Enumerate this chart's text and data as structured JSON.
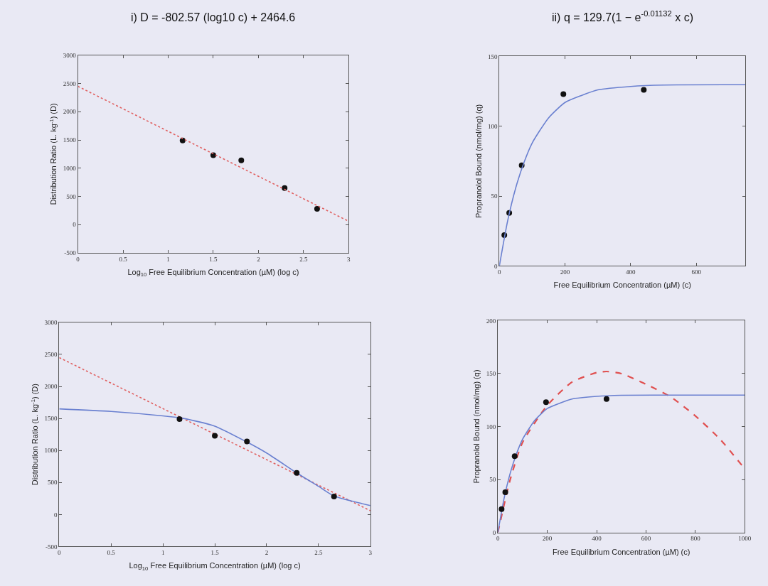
{
  "chart_data": [
    {
      "type": "scatter",
      "title": "i) D = -802.57 (log10 c) + 2464.6",
      "xlabel": "Log$_{10}$ Free Equilibrium Concentration (µM) (log c)",
      "ylabel": "Distribution Ratio (L. kg$^{-1}$) (D)",
      "xlim": [
        0,
        3
      ],
      "xticks": [
        0,
        0.5,
        1,
        1.5,
        2,
        2.5,
        3
      ],
      "ylim": [
        -500,
        3000
      ],
      "yticks": [
        -500,
        0,
        500,
        1000,
        1500,
        2000,
        2500,
        3000
      ],
      "grid": false,
      "series": [
        {
          "color": "#111111",
          "marker": "circle",
          "x": [
            1.16,
            1.5,
            1.81,
            2.29,
            2.65
          ],
          "values": [
            1490,
            1230,
            1140,
            650,
            280
          ]
        },
        {
          "type": "line",
          "color": "#e06060",
          "line_style": "dotted",
          "x": [
            0,
            3
          ],
          "values": [
            2450,
            60
          ]
        }
      ]
    },
    {
      "type": "scatter",
      "title": "ii) q = 129.7(1 − e$^{-0.01132}$ x c)",
      "xlabel": "Free Equilibrium Concentration (µM) (c)",
      "ylabel": "Propranolol Bound (nmol/mg) (q)",
      "xlim": [
        0,
        750
      ],
      "xticks": [
        0,
        200,
        400,
        600
      ],
      "ylim": [
        0,
        150
      ],
      "yticks": [
        0,
        50,
        100,
        150
      ],
      "grid": false,
      "series": [
        {
          "color": "#111111",
          "marker": "circle",
          "x": [
            15,
            30,
            68,
            195,
            440
          ],
          "values": [
            22,
            38,
            72,
            123,
            126
          ]
        },
        {
          "type": "line",
          "color": "#6a80d0",
          "line_style": "solid",
          "x": [
            0,
            25,
            50,
            75,
            100,
            150,
            200,
            250,
            300,
            400,
            500,
            750
          ],
          "values": [
            0,
            32,
            56,
            74,
            88,
            106,
            117,
            122,
            126,
            128.5,
            129.5,
            129.7
          ]
        }
      ]
    },
    {
      "type": "scatter",
      "xlabel": "Log$_{10}$ Free Equilibrium Concentration (µM) (log c)",
      "ylabel": "Distribution Ratio (L. kg$^{-1}$) (D)",
      "xlim": [
        0,
        3
      ],
      "xticks": [
        0,
        0.5,
        1,
        1.5,
        2,
        2.5,
        3
      ],
      "ylim": [
        -500,
        3000
      ],
      "yticks": [
        -500,
        0,
        500,
        1000,
        1500,
        2000,
        2500,
        3000
      ],
      "grid": false,
      "series": [
        {
          "type": "line",
          "color": "#e06060",
          "line_style": "dotted",
          "x": [
            0,
            3
          ],
          "values": [
            2450,
            60
          ]
        },
        {
          "type": "line",
          "color": "#6a80d0",
          "line_style": "solid",
          "x": [
            0,
            0.5,
            1,
            1.2,
            1.5,
            1.8,
            2.0,
            2.29,
            2.5,
            2.65,
            3
          ],
          "values": [
            1650,
            1610,
            1540,
            1500,
            1380,
            1140,
            960,
            650,
            440,
            290,
            140
          ]
        },
        {
          "color": "#111111",
          "marker": "circle",
          "x": [
            1.16,
            1.5,
            1.81,
            2.29,
            2.65
          ],
          "values": [
            1490,
            1230,
            1140,
            650,
            280
          ]
        }
      ]
    },
    {
      "type": "scatter",
      "xlabel": "Free Equilibrium Concentration (µM) (c)",
      "ylabel": "Propranolol Bound (nmol/mg) (q)",
      "xlim": [
        0,
        1000
      ],
      "xticks": [
        0,
        200,
        400,
        600,
        800,
        1000
      ],
      "ylim": [
        0,
        200
      ],
      "yticks": [
        0,
        50,
        100,
        150,
        200
      ],
      "grid": false,
      "series": [
        {
          "type": "line",
          "color": "#e05050",
          "line_style": "dashed",
          "x": [
            0,
            50,
            100,
            200,
            300,
            400,
            440,
            500,
            600,
            700,
            800,
            900,
            1000
          ],
          "values": [
            0,
            50,
            85,
            120,
            142,
            151,
            152,
            150,
            140,
            128,
            110,
            88,
            60
          ]
        },
        {
          "type": "line",
          "color": "#6a80d0",
          "line_style": "solid",
          "x": [
            0,
            25,
            50,
            75,
            100,
            150,
            200,
            250,
            300,
            400,
            500,
            750,
            1000
          ],
          "values": [
            0,
            32,
            56,
            74,
            88,
            106,
            117,
            122,
            126,
            128.5,
            129.5,
            129.7,
            129.7
          ]
        },
        {
          "color": "#111111",
          "marker": "circle",
          "x": [
            15,
            30,
            68,
            195,
            440
          ],
          "values": [
            22,
            38,
            72,
            123,
            126
          ]
        }
      ]
    }
  ]
}
